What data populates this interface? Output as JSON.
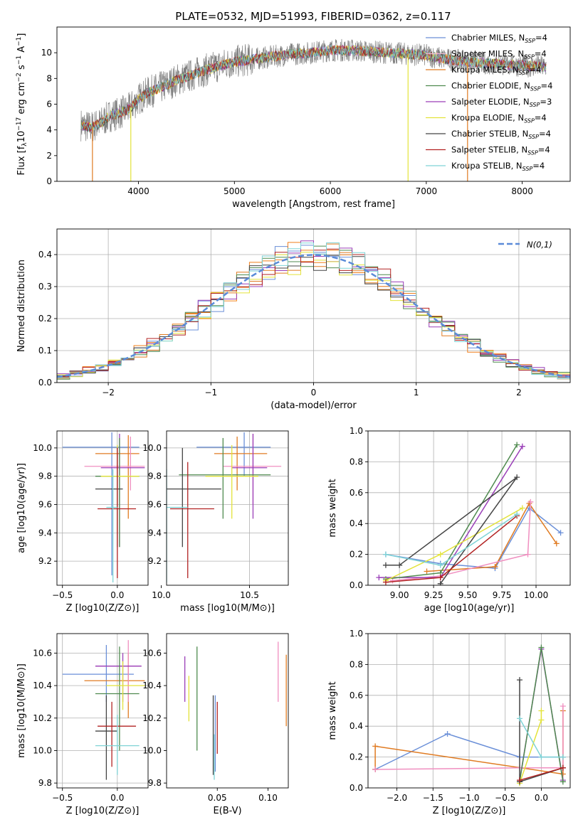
{
  "figure_title": "PLATE=0532, MJD=51993, FIBERID=0362, z=0.117",
  "colors": [
    "#6a8fd8",
    "#f07f1a",
    "#e07b22",
    "#4f8a4f",
    "#9a3fb8",
    "#e3e33a",
    "#444444",
    "#b22222",
    "#7fd3d6"
  ],
  "chart_data": [
    {
      "type": "line",
      "id": "spectrum",
      "xlabel": "wavelength [Angstrom, rest frame]",
      "ylabel": "Flux [f_λ10^-17 erg cm^-2 s^-1 A^-1]",
      "xlim": [
        3150,
        8500
      ],
      "ylim": [
        0,
        12
      ],
      "xticks": [
        4000,
        5000,
        6000,
        7000,
        8000
      ],
      "yticks": [
        0,
        2,
        4,
        6,
        8,
        10
      ],
      "grid": false,
      "legend_placement": "right",
      "legend": [
        {
          "lbl": "Chabrier MILES, N",
          "sub": "SSP",
          "tail": "=4",
          "color": "#6a8fd8"
        },
        {
          "lbl": "Salpeter MILES, N",
          "sub": "SSP",
          "tail": "=4",
          "color": "#f0b8d0"
        },
        {
          "lbl": "Kroupa MILES, N",
          "sub": "SSP",
          "tail": "=4",
          "color": "#e07b22"
        },
        {
          "lbl": "Chabrier ELODIE, N",
          "sub": "SSP",
          "tail": "=4",
          "color": "#4f8a4f"
        },
        {
          "lbl": "Salpeter ELODIE, N",
          "sub": "SSP",
          "tail": "=3",
          "color": "#9a3fb8"
        },
        {
          "lbl": "Kroupa ELODIE, N",
          "sub": "SSP",
          "tail": "=4",
          "color": "#e3e33a"
        },
        {
          "lbl": "Chabrier STELIB, N",
          "sub": "SSP",
          "tail": "=4",
          "color": "#444444"
        },
        {
          "lbl": "Salpeter STELIB, N",
          "sub": "SSP",
          "tail": "=4",
          "color": "#b22222"
        },
        {
          "lbl": "Kroupa STELIB, N",
          "sub": "SSP",
          "tail": "=4",
          "color": "#7fd3d6"
        }
      ],
      "model_curve": {
        "x": [
          3400,
          3500,
          3600,
          3700,
          3800,
          3900,
          4000,
          4100,
          4200,
          4300,
          4400,
          4500,
          4600,
          4800,
          5000,
          5200,
          5400,
          5600,
          5800,
          6000,
          6200,
          6400,
          6600,
          6800,
          7000,
          7200,
          7400,
          7600,
          7800,
          8000,
          8250
        ],
        "y": [
          4.4,
          4.2,
          4.5,
          5.1,
          5.3,
          5.6,
          6.4,
          6.9,
          7.2,
          7.5,
          7.9,
          8.1,
          8.4,
          8.9,
          9.3,
          9.5,
          9.7,
          9.9,
          10.0,
          10.2,
          10.2,
          10.1,
          10.0,
          9.9,
          9.8,
          9.5,
          9.3,
          9.2,
          9.1,
          9.0,
          8.9
        ]
      },
      "data_noise": 1.0
    },
    {
      "type": "bar",
      "id": "residuals",
      "xlabel": "(data-model)/error",
      "ylabel": "Normed distribution",
      "xlim": [
        -2.5,
        2.5
      ],
      "ylim": [
        0,
        0.48
      ],
      "xticks": [
        -2,
        -1,
        0,
        1,
        2
      ],
      "yticks": [
        0.0,
        0.1,
        0.2,
        0.3,
        0.4
      ],
      "grid": true,
      "legend": "N(0,1)",
      "legend_placement": "top-right",
      "reference_curve": "normal(0,1)"
    },
    {
      "type": "scatter",
      "id": "age_vs_Z",
      "xlabel": "Z [log10(Z/Z⊙)]",
      "ylabel": "age [log10(age/yr)]",
      "xlim": [
        -0.55,
        0.28
      ],
      "ylim": [
        9.03,
        10.12
      ],
      "xticks": [
        -0.5,
        0.0
      ],
      "yticks": [
        9.2,
        9.4,
        9.6,
        9.8,
        10.0
      ],
      "grid": true,
      "crosses": [
        {
          "x": -0.05,
          "xe": [
            -0.5,
            0.2
          ],
          "y": 10.005,
          "ye": [
            9.1,
            10.11
          ],
          "color": "#6a8fd8"
        },
        {
          "x": 0.1,
          "xe": [
            -0.2,
            0.2
          ],
          "y": 9.96,
          "ye": [
            9.5,
            10.09
          ],
          "color": "#e07b22"
        },
        {
          "x": 0.12,
          "xe": [
            -0.3,
            0.25
          ],
          "y": 9.87,
          "ye": [
            9.7,
            10.08
          ],
          "color": "#f08fc0"
        },
        {
          "x": 0.02,
          "xe": [
            -0.15,
            0.25
          ],
          "y": 9.86,
          "ye": [
            9.3,
            10.1
          ],
          "color": "#9a3fb8"
        },
        {
          "x": 0.02,
          "xe": [
            -0.2,
            0.2
          ],
          "y": 9.8,
          "ye": [
            9.3,
            10.07
          ],
          "color": "#4f8a4f"
        },
        {
          "x": 0.0,
          "xe": [
            -0.15,
            0.2
          ],
          "y": 9.8,
          "ye": [
            9.4,
            10.02
          ],
          "color": "#e3e33a"
        },
        {
          "x": 0.0,
          "xe": [
            -0.2,
            0.05
          ],
          "y": 9.71,
          "ye": [
            9.3,
            10.0
          ],
          "color": "#444444"
        },
        {
          "x": 0.0,
          "xe": [
            -0.18,
            0.17
          ],
          "y": 9.57,
          "ye": [
            9.08,
            10.0
          ],
          "color": "#b22222"
        },
        {
          "x": -0.04,
          "xe": [
            -0.1,
            0.0
          ],
          "y": 9.58,
          "ye": [
            9.05,
            9.85
          ],
          "color": "#7fd3d6"
        }
      ]
    },
    {
      "type": "scatter",
      "id": "age_vs_mass",
      "xlabel": "mass [log10(M/M⊙)]",
      "ylabel": "",
      "xlim": [
        10.03,
        10.72
      ],
      "ylim": [
        9.03,
        10.12
      ],
      "xticks": [
        10.0,
        10.5
      ],
      "yticks": [
        9.2,
        9.4,
        9.6,
        9.8,
        10.0
      ],
      "grid": true,
      "crosses": [
        {
          "x": 10.47,
          "xe": [
            10.2,
            10.62
          ],
          "y": 10.005,
          "ye": [
            9.8,
            10.11
          ],
          "color": "#6a8fd8"
        },
        {
          "x": 10.43,
          "xe": [
            10.3,
            10.6
          ],
          "y": 9.96,
          "ye": [
            9.7,
            10.08
          ],
          "color": "#e07b22"
        },
        {
          "x": 10.52,
          "xe": [
            10.35,
            10.68
          ],
          "y": 9.87,
          "ye": [
            9.6,
            10.1
          ],
          "color": "#f08fc0"
        },
        {
          "x": 10.52,
          "xe": [
            10.4,
            10.6
          ],
          "y": 9.86,
          "ye": [
            9.5,
            10.1
          ],
          "color": "#9a3fb8"
        },
        {
          "x": 10.35,
          "xe": [
            10.1,
            10.62
          ],
          "y": 9.81,
          "ye": [
            9.5,
            10.07
          ],
          "color": "#4f8a4f"
        },
        {
          "x": 10.4,
          "xe": [
            10.25,
            10.55
          ],
          "y": 9.8,
          "ye": [
            9.5,
            10.02
          ],
          "color": "#e3e33a"
        },
        {
          "x": 10.12,
          "xe": [
            9.92,
            10.34
          ],
          "y": 9.71,
          "ye": [
            9.3,
            10.0
          ],
          "color": "#444444"
        },
        {
          "x": 10.15,
          "xe": [
            10.05,
            10.3
          ],
          "y": 9.57,
          "ye": [
            9.08,
            9.9
          ],
          "color": "#b22222"
        },
        {
          "x": 10.03,
          "xe": [
            9.9,
            10.15
          ],
          "y": 9.58,
          "ye": [
            9.05,
            9.85
          ],
          "color": "#7fd3d6"
        }
      ]
    },
    {
      "type": "line",
      "id": "weight_vs_age",
      "xlabel": "age [log10(age/yr)]",
      "ylabel": "mass weight",
      "xlim": [
        8.77,
        10.25
      ],
      "ylim": [
        0.0,
        1.0
      ],
      "xticks": [
        9.0,
        9.25,
        9.5,
        9.75,
        10.0
      ],
      "yticks": [
        0.0,
        0.2,
        0.4,
        0.6,
        0.8,
        1.0
      ],
      "grid": true,
      "series": [
        {
          "color": "#6a8fd8",
          "x": [
            8.9,
            9.3,
            9.7,
            9.95,
            10.18
          ],
          "y": [
            0.2,
            0.14,
            0.11,
            0.5,
            0.34
          ]
        },
        {
          "color": "#e07b22",
          "x": [
            9.2,
            9.7,
            9.95,
            10.15
          ],
          "y": [
            0.09,
            0.12,
            0.53,
            0.27
          ]
        },
        {
          "color": "#f08fc0",
          "x": [
            8.95,
            9.3,
            9.94,
            9.96
          ],
          "y": [
            0.03,
            0.06,
            0.2,
            0.54
          ]
        },
        {
          "color": "#9a3fb8",
          "x": [
            8.85,
            9.3,
            9.9
          ],
          "y": [
            0.05,
            0.05,
            0.9
          ]
        },
        {
          "color": "#4f8a4f",
          "x": [
            8.9,
            9.3,
            9.86
          ],
          "y": [
            0.04,
            0.08,
            0.91
          ]
        },
        {
          "color": "#e3e33a",
          "x": [
            8.9,
            9.3,
            9.9
          ],
          "y": [
            0.03,
            0.2,
            0.5
          ]
        },
        {
          "color": "#444444",
          "x": [
            8.9,
            9.0,
            9.86,
            9.3
          ],
          "y": [
            0.13,
            0.13,
            0.7,
            0.01
          ]
        },
        {
          "color": "#b22222",
          "x": [
            8.9,
            9.3,
            9.86
          ],
          "y": [
            0.02,
            0.05,
            0.45
          ]
        },
        {
          "color": "#7fd3d6",
          "x": [
            8.9,
            9.3,
            9.86
          ],
          "y": [
            0.2,
            0.13,
            0.46
          ]
        }
      ]
    },
    {
      "type": "scatter",
      "id": "mass_vs_Z",
      "xlabel": "Z [log10(Z/Z⊙)]",
      "ylabel": "mass [log10(M/M⊙)]",
      "xlim": [
        -0.55,
        0.28
      ],
      "ylim": [
        9.77,
        10.72
      ],
      "xticks": [
        -0.5,
        0.0
      ],
      "yticks": [
        9.8,
        10.0,
        10.2,
        10.4,
        10.6
      ],
      "grid": true,
      "crosses": [
        {
          "x": -0.1,
          "xe": [
            -0.5,
            0.15
          ],
          "y": 10.47,
          "ye": [
            10.3,
            10.65
          ],
          "color": "#6a8fd8"
        },
        {
          "x": 0.1,
          "xe": [
            -0.3,
            0.25
          ],
          "y": 10.43,
          "ye": [
            10.2,
            10.6
          ],
          "color": "#e07b22"
        },
        {
          "x": 0.1,
          "xe": [
            -0.2,
            0.22
          ],
          "y": 10.52,
          "ye": [
            10.3,
            10.68
          ],
          "color": "#f08fc0"
        },
        {
          "x": 0.05,
          "xe": [
            -0.2,
            0.22
          ],
          "y": 10.52,
          "ye": [
            10.3,
            10.6
          ],
          "color": "#9a3fb8"
        },
        {
          "x": 0.02,
          "xe": [
            -0.2,
            0.2
          ],
          "y": 10.35,
          "ye": [
            10.0,
            10.64
          ],
          "color": "#4f8a4f"
        },
        {
          "x": 0.05,
          "xe": [
            -0.1,
            0.25
          ],
          "y": 10.4,
          "ye": [
            10.25,
            10.55
          ],
          "color": "#e3e33a"
        },
        {
          "x": -0.1,
          "xe": [
            -0.2,
            0.0
          ],
          "y": 10.12,
          "ye": [
            9.82,
            10.34
          ],
          "color": "#444444"
        },
        {
          "x": -0.05,
          "xe": [
            -0.18,
            0.17
          ],
          "y": 10.15,
          "ye": [
            9.9,
            10.3
          ],
          "color": "#b22222"
        },
        {
          "x": 0.0,
          "xe": [
            -0.2,
            0.2
          ],
          "y": 10.03,
          "ye": [
            9.85,
            10.22
          ],
          "color": "#7fd3d6"
        }
      ]
    },
    {
      "type": "scatter",
      "id": "mass_vs_ebv",
      "xlabel": "E(B-V)",
      "ylabel": "",
      "xlim": [
        0.0,
        0.12
      ],
      "ylim": [
        9.77,
        10.72
      ],
      "xticks": [
        0.05,
        0.1
      ],
      "yticks": [
        9.8,
        10.0,
        10.2,
        10.4,
        10.6
      ],
      "grid": false,
      "crosses": [
        {
          "x": 0.048,
          "xe": [
            0.048,
            0.048
          ],
          "y": 10.1,
          "ye": [
            9.87,
            10.34
          ],
          "color": "#6a8fd8"
        },
        {
          "x": 0.118,
          "xe": [
            0.118,
            0.118
          ],
          "y": 10.35,
          "ye": [
            10.15,
            10.59
          ],
          "color": "#e07b22"
        },
        {
          "x": 0.11,
          "xe": [
            0.11,
            0.11
          ],
          "y": 10.5,
          "ye": [
            10.3,
            10.67
          ],
          "color": "#f08fc0"
        },
        {
          "x": 0.018,
          "xe": [
            0.018,
            0.018
          ],
          "y": 10.45,
          "ye": [
            10.3,
            10.58
          ],
          "color": "#9a3fb8"
        },
        {
          "x": 0.03,
          "xe": [
            0.03,
            0.03
          ],
          "y": 10.3,
          "ye": [
            10.0,
            10.64
          ],
          "color": "#4f8a4f"
        },
        {
          "x": 0.022,
          "xe": [
            0.022,
            0.022
          ],
          "y": 10.32,
          "ye": [
            10.18,
            10.46
          ],
          "color": "#e3e33a"
        },
        {
          "x": 0.046,
          "xe": [
            0.046,
            0.046
          ],
          "y": 10.1,
          "ye": [
            9.85,
            10.34
          ],
          "color": "#444444"
        },
        {
          "x": 0.05,
          "xe": [
            0.05,
            0.05
          ],
          "y": 10.1,
          "ye": [
            9.98,
            10.3
          ],
          "color": "#b22222"
        },
        {
          "x": 0.047,
          "xe": [
            0.047,
            0.047
          ],
          "y": 10.0,
          "ye": [
            9.82,
            10.1
          ],
          "color": "#7fd3d6"
        }
      ]
    },
    {
      "type": "line",
      "id": "weight_vs_Z",
      "xlabel": "Z [log10(Z/Z⊙)]",
      "ylabel": "mass weight",
      "xlim": [
        -2.4,
        0.4
      ],
      "ylim": [
        0.0,
        1.0
      ],
      "xticks": [
        -2.0,
        -1.5,
        -1.0,
        -0.5,
        0.0
      ],
      "yticks": [
        0.0,
        0.2,
        0.4,
        0.6,
        0.8,
        1.0
      ],
      "grid": true,
      "series": [
        {
          "color": "#6a8fd8",
          "x": [
            -2.3,
            -1.3,
            -0.3,
            0.3
          ],
          "y": [
            0.12,
            0.35,
            0.2,
            0.2
          ]
        },
        {
          "color": "#e07b22",
          "x": [
            -2.3,
            -2.3,
            0.3,
            0.3
          ],
          "y": [
            0.12,
            0.27,
            0.09,
            0.5
          ]
        },
        {
          "color": "#f08fc0",
          "x": [
            -2.3,
            -0.3,
            0.3,
            0.3
          ],
          "y": [
            0.12,
            0.13,
            0.13,
            0.53
          ]
        },
        {
          "color": "#9a3fb8",
          "x": [
            -0.3,
            0.0,
            0.3
          ],
          "y": [
            0.05,
            0.9,
            0.05
          ]
        },
        {
          "color": "#4f8a4f",
          "x": [
            -0.3,
            0.0,
            0.3
          ],
          "y": [
            0.04,
            0.91,
            0.04
          ]
        },
        {
          "color": "#e3e33a",
          "x": [
            -0.3,
            0.0,
            0.0
          ],
          "y": [
            0.03,
            0.44,
            0.5
          ]
        },
        {
          "color": "#444444",
          "x": [
            -0.3,
            -0.3,
            0.3
          ],
          "y": [
            0.7,
            0.04,
            0.13
          ]
        },
        {
          "color": "#b22222",
          "x": [
            -0.3,
            0.3
          ],
          "y": [
            0.05,
            0.13
          ]
        },
        {
          "color": "#7fd3d6",
          "x": [
            -0.3,
            0.0,
            0.3
          ],
          "y": [
            0.45,
            0.2,
            0.2
          ]
        }
      ]
    }
  ]
}
